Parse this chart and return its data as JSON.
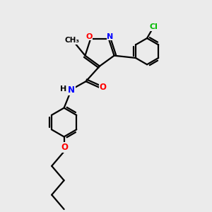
{
  "bg_color": "#ebebeb",
  "bond_color": "#000000",
  "bond_width": 1.6,
  "atom_colors": {
    "N": "#0000ff",
    "O": "#ff0000",
    "Cl": "#00bb00",
    "C": "#000000",
    "H": "#808080"
  },
  "font_size": 9
}
